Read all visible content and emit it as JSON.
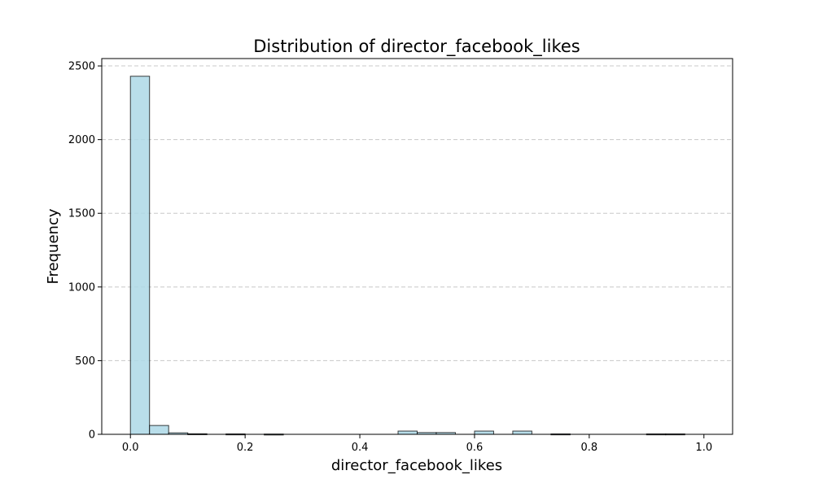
{
  "chart_data": {
    "type": "bar",
    "title": "Distribution of director_facebook_likes",
    "xlabel": "director_facebook_likes",
    "ylabel": "Frequency",
    "xlim": [
      -0.05,
      1.05
    ],
    "ylim": [
      0,
      2550
    ],
    "xticks": [
      0.0,
      0.2,
      0.4,
      0.6,
      0.8,
      1.0
    ],
    "xtick_labels": [
      "0.0",
      "0.2",
      "0.4",
      "0.6",
      "0.8",
      "1.0"
    ],
    "yticks": [
      0,
      500,
      1000,
      1500,
      2000,
      2500
    ],
    "ytick_labels": [
      "0",
      "500",
      "1000",
      "1500",
      "2000",
      "2500"
    ],
    "grid": "y-dashed",
    "legend": "none",
    "bins": 30,
    "bin_start": 0.0,
    "bin_end": 1.0,
    "values": [
      2430,
      60,
      10,
      4,
      0,
      3,
      0,
      2,
      0,
      0,
      0,
      0,
      0,
      0,
      22,
      12,
      12,
      0,
      22,
      0,
      22,
      0,
      3,
      0,
      0,
      0,
      0,
      3,
      3,
      0
    ],
    "bar_color": "#add8e6",
    "edge_color": "#000000",
    "grid_color": "#c8c8c8"
  }
}
